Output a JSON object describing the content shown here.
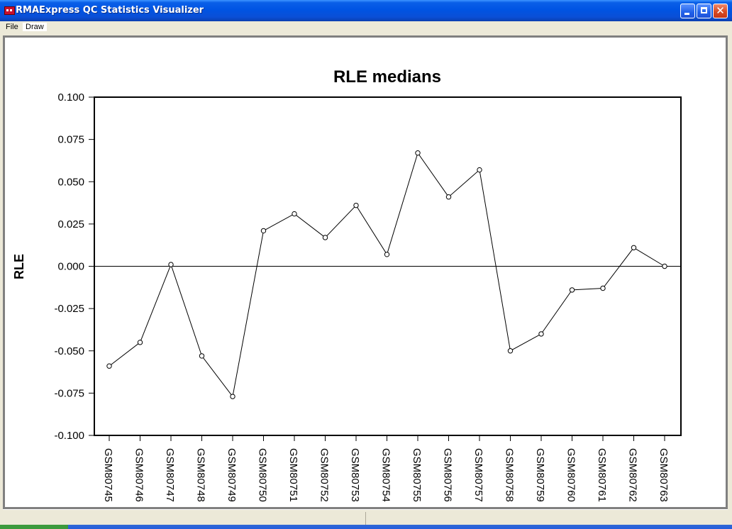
{
  "window": {
    "title": "RMAExpress QC Statistics Visualizer",
    "controls": {
      "minimize": "minimize-icon",
      "maximize": "restore-icon",
      "close": "close-icon"
    }
  },
  "menu": {
    "items": [
      "File",
      "Draw"
    ]
  },
  "colors": {
    "titlebar": "#0054e3",
    "line": "#000000",
    "background": "#ffffff"
  },
  "chart_data": {
    "type": "line",
    "title": "RLE medians",
    "xlabel": "",
    "ylabel": "RLE",
    "ylim": [
      -0.1,
      0.1
    ],
    "yticks": [
      "0.100",
      "0.075",
      "0.050",
      "0.025",
      "0.000",
      "-0.025",
      "-0.050",
      "-0.075",
      "-0.100"
    ],
    "reference_line": 0,
    "grid": false,
    "categories": [
      "GSM80745",
      "GSM80746",
      "GSM80747",
      "GSM80748",
      "GSM80749",
      "GSM80750",
      "GSM80751",
      "GSM80752",
      "GSM80753",
      "GSM80754",
      "GSM80755",
      "GSM80756",
      "GSM80757",
      "GSM80758",
      "GSM80759",
      "GSM80760",
      "GSM80761",
      "GSM80762",
      "GSM80763"
    ],
    "values": [
      -0.059,
      -0.045,
      0.001,
      -0.053,
      -0.077,
      0.021,
      0.031,
      0.017,
      0.036,
      0.007,
      0.067,
      0.041,
      0.057,
      -0.05,
      -0.04,
      -0.014,
      -0.013,
      0.011,
      0.0
    ]
  }
}
